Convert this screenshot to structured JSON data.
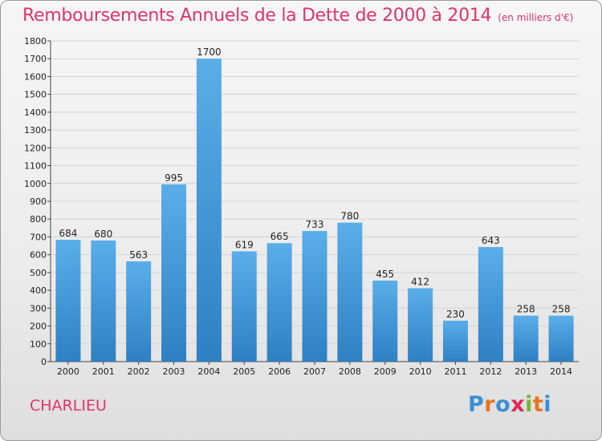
{
  "header": {
    "title": "Remboursements Annuels de la Dette de 2000 à 2014",
    "unit": "(en milliers d'€)"
  },
  "footer": {
    "city": "CHARLIEU",
    "logo": [
      "P",
      "r",
      "o",
      "x",
      "i",
      "t",
      "i"
    ],
    "logo_colors": [
      "#3c8fd6",
      "#e8761e",
      "#3c8fd6",
      "#e02a57",
      "#76b52c",
      "#e8761e",
      "#3c8fd6"
    ]
  },
  "chart_data": {
    "type": "bar",
    "title": "Remboursements Annuels de la Dette de 2000 à 2014",
    "xlabel": "",
    "ylabel": "",
    "categories": [
      "2000",
      "2001",
      "2002",
      "2003",
      "2004",
      "2005",
      "2006",
      "2007",
      "2008",
      "2009",
      "2010",
      "2011",
      "2012",
      "2013",
      "2014"
    ],
    "values": [
      684,
      680,
      563,
      995,
      1700,
      619,
      665,
      733,
      780,
      455,
      412,
      230,
      643,
      258,
      258
    ],
    "ylim": [
      0,
      1800
    ],
    "yticks": [
      0,
      100,
      200,
      300,
      400,
      500,
      600,
      700,
      800,
      900,
      1000,
      1100,
      1200,
      1300,
      1400,
      1500,
      1600,
      1700,
      1800
    ],
    "grid": true,
    "bar_color_top": "#5aaee8",
    "bar_color_bottom": "#2e80c4"
  }
}
